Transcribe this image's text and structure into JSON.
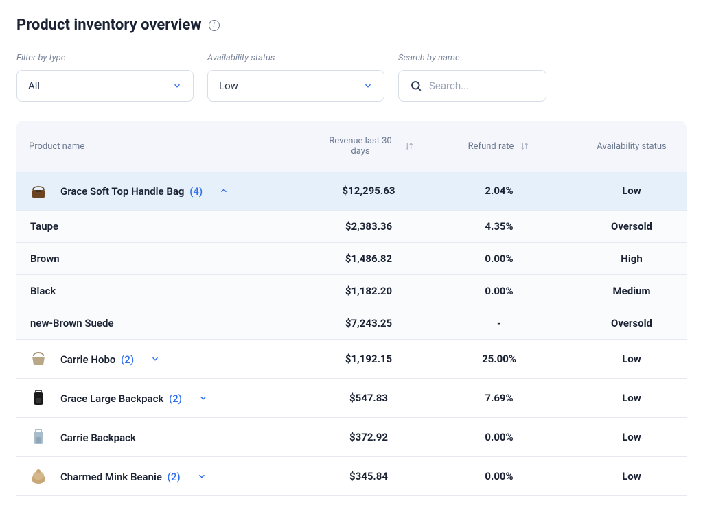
{
  "header": {
    "title": "Product inventory overview"
  },
  "filters": {
    "type": {
      "label": "Filter by type",
      "value": "All"
    },
    "availability": {
      "label": "Availability status",
      "value": "Low"
    },
    "search": {
      "label": "Search by name",
      "placeholder": "Search..."
    }
  },
  "table": {
    "columns": {
      "product": "Product name",
      "revenue": "Revenue last 30 days",
      "refund": "Refund rate",
      "status": "Availability status"
    },
    "rows": [
      {
        "type": "parent",
        "expanded": true,
        "name": "Grace Soft Top Handle Bag",
        "variant_count": "(4)",
        "revenue": "$12,295.63",
        "refund": "2.04%",
        "status": "Low",
        "thumb": "handbag-brown",
        "children": [
          {
            "name": "Taupe",
            "revenue": "$2,383.36",
            "refund": "4.35%",
            "status": "Oversold"
          },
          {
            "name": "Brown",
            "revenue": "$1,486.82",
            "refund": "0.00%",
            "status": "High"
          },
          {
            "name": "Black",
            "revenue": "$1,182.20",
            "refund": "0.00%",
            "status": "Medium"
          },
          {
            "name": "new-Brown Suede",
            "revenue": "$7,243.25",
            "refund": "-",
            "status": "Oversold"
          }
        ]
      },
      {
        "type": "parent",
        "expanded": false,
        "name": "Carrie Hobo",
        "variant_count": "(2)",
        "revenue": "$1,192.15",
        "refund": "25.00%",
        "status": "Low",
        "thumb": "hobo-taupe"
      },
      {
        "type": "parent",
        "expanded": false,
        "name": "Grace Large Backpack",
        "variant_count": "(2)",
        "revenue": "$547.83",
        "refund": "7.69%",
        "status": "Low",
        "thumb": "backpack-black"
      },
      {
        "type": "parent",
        "expanded": false,
        "name": "Carrie Backpack",
        "variant_count": "",
        "revenue": "$372.92",
        "refund": "0.00%",
        "status": "Low",
        "thumb": "backpack-blue"
      },
      {
        "type": "parent",
        "expanded": false,
        "name": "Charmed Mink Beanie",
        "variant_count": "(2)",
        "revenue": "$345.84",
        "refund": "0.00%",
        "status": "Low",
        "thumb": "beanie-tan"
      }
    ]
  },
  "colors": {
    "accent": "#2f6fed",
    "text_primary": "#1a2233",
    "text_muted": "#6b7890",
    "header_bg": "#f4f6fb",
    "expanded_bg": "#e6f0fb",
    "child_bg": "#fafbfd",
    "border": "#e6e9f2"
  }
}
